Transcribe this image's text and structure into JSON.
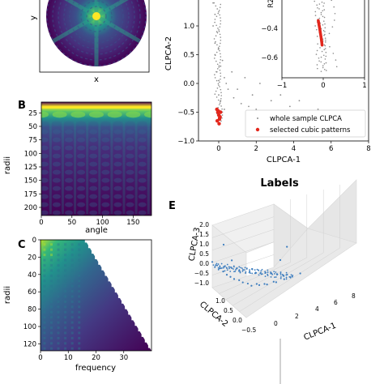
{
  "colors": {
    "viridis_dark": "#440154",
    "viridis_mid": "#21918c",
    "viridis_bright": "#fde725",
    "gray_points": "#8c8c8c",
    "red_points": "#e3271c",
    "blue_points": "#3c7dbf"
  },
  "panels": {
    "A": {
      "xlabel": "x",
      "ylabel": "y"
    },
    "B": {
      "letter": "B",
      "xlabel": "angle",
      "ylabel": "radii",
      "xticks": [
        "0",
        "50",
        "100",
        "150"
      ],
      "yticks": [
        "25",
        "50",
        "75",
        "100",
        "125",
        "150",
        "175",
        "200"
      ]
    },
    "C": {
      "letter": "C",
      "xlabel": "frequency",
      "ylabel": "radii",
      "xticks": [
        "0",
        "10",
        "20",
        "30"
      ],
      "yticks": [
        "0",
        "20",
        "40",
        "60",
        "80",
        "100",
        "120"
      ]
    },
    "D": {
      "xlabel": "CLPCA-1",
      "ylabel": "CLPCA-2",
      "xticks": [
        "0",
        "2",
        "4",
        "6",
        "8"
      ],
      "yticks": [
        "1.0",
        "0.5",
        "0.0",
        "−0.5",
        "−1.0"
      ],
      "legend": [
        "whole sample CLPCA",
        "selected cubic patterns"
      ],
      "inset_xticks": [
        "−1",
        "0",
        "1"
      ],
      "inset_yticks": [
        "−0.4",
        "−0.6"
      ],
      "inset_ylabel_fragment": "R2"
    },
    "E": {
      "letter": "E",
      "section_title": "Labels",
      "xlabel": "CLPCA-1",
      "ylabel": "CLPCA-2",
      "zlabel": "CLPCA-3",
      "xticks": [
        "0",
        "2",
        "4",
        "6",
        "8"
      ],
      "yticks": [
        "−0.5",
        "0.0",
        "0.5",
        "1.0"
      ],
      "zticks": [
        "2.0",
        "1.5",
        "1.0",
        "0.5",
        "0.0",
        "−0.5",
        "−1.0"
      ]
    }
  },
  "chart_data": [
    {
      "type": "heatmap",
      "panel": "A",
      "xlabel": "x",
      "ylabel": "y",
      "description_values": "circular diffraction pattern, bright center with six-fold symmetric spokes"
    },
    {
      "type": "heatmap",
      "panel": "B",
      "xlabel": "angle",
      "ylabel": "radii",
      "xlim": [
        0,
        180
      ],
      "ylim": [
        215,
        5
      ],
      "features": {
        "bright_band_radii": 15,
        "secondary_band_radii": 28,
        "periodicity_deg": 60
      }
    },
    {
      "type": "heatmap",
      "panel": "C",
      "xlabel": "frequency",
      "ylabel": "radii",
      "xlim": [
        0,
        40
      ],
      "ylim": [
        128,
        0
      ]
    },
    {
      "type": "scatter",
      "panel": "D",
      "xlabel": "CLPCA-1",
      "ylabel": "CLPCA-2",
      "xlim": [
        -1.5,
        8
      ],
      "ylim": [
        -1.0,
        1.5
      ],
      "series": [
        {
          "name": "whole sample CLPCA",
          "color": "#8c8c8c",
          "x": [
            -0.3,
            -0.2,
            -0.1,
            0.0,
            0.1,
            0.3,
            0.5,
            0.8,
            1.2,
            1.6,
            2.0,
            2.5,
            3.0,
            3.5,
            4.0,
            4.5,
            5.0,
            5.5,
            6.0,
            6.5,
            7.0,
            7.5,
            -0.2,
            -0.1,
            0.0,
            0.2,
            0.4,
            0.7,
            1.0,
            1.4,
            1.8,
            2.2,
            2.8,
            3.3,
            3.8,
            4.3,
            4.8,
            5.3,
            5.8,
            6.3,
            -0.3,
            -0.2,
            0.0,
            0.1,
            0.3
          ],
          "y": [
            1.4,
            1.2,
            0.9,
            0.6,
            0.3,
            0.1,
            -0.1,
            -0.25,
            -0.35,
            -0.4,
            -0.45,
            -0.5,
            -0.55,
            -0.6,
            -0.62,
            -0.65,
            -0.68,
            -0.7,
            -0.72,
            -0.74,
            -0.76,
            -0.78,
            0.5,
            0.2,
            -0.2,
            0.4,
            0.0,
            0.2,
            -0.1,
            0.1,
            -0.2,
            0.0,
            -0.3,
            -0.2,
            -0.4,
            -0.3,
            -0.5,
            -0.45,
            -0.6,
            -0.55,
            1.0,
            0.7,
            0.05,
            -0.3,
            -0.45
          ]
        },
        {
          "name": "selected cubic patterns",
          "color": "#e3271c",
          "x": [
            -0.1,
            -0.05,
            0.0,
            0.05,
            0.1,
            -0.08,
            0.02,
            0.07,
            -0.02,
            0.04
          ],
          "y": [
            -0.45,
            -0.5,
            -0.55,
            -0.6,
            -0.5,
            -0.65,
            -0.7,
            -0.58,
            -0.48,
            -0.62
          ]
        }
      ]
    },
    {
      "type": "scatter",
      "panel": "E",
      "xlabel": "CLPCA-1",
      "ylabel": "CLPCA-2",
      "zlabel": "CLPCA-3",
      "xlim": [
        0,
        8
      ],
      "ylim": [
        -0.5,
        1.0
      ],
      "zlim": [
        -1.0,
        2.0
      ],
      "series": [
        {
          "color": "#3c7dbf",
          "x": [
            0.0,
            0.2,
            0.4,
            0.6,
            0.9,
            1.2,
            1.6,
            2.0,
            2.5,
            3.0,
            3.5,
            4.0,
            0.1,
            0.3,
            0.5,
            0.8,
            1.1,
            1.5,
            1.9,
            2.4,
            0.0,
            0.1,
            0.3,
            2.8,
            3.2
          ],
          "y": [
            1.0,
            0.8,
            0.6,
            0.4,
            0.2,
            0.0,
            -0.1,
            -0.2,
            -0.3,
            -0.35,
            -0.4,
            -0.45,
            0.9,
            0.7,
            0.5,
            0.3,
            0.1,
            -0.05,
            -0.15,
            -0.25,
            0.5,
            0.2,
            0.0,
            -0.3,
            -0.35
          ],
          "z": [
            0.2,
            0.0,
            -0.2,
            -0.3,
            -0.4,
            -0.5,
            -0.55,
            -0.6,
            -0.62,
            -0.65,
            -0.7,
            -0.72,
            0.1,
            -0.1,
            -0.25,
            -0.35,
            -0.45,
            -0.5,
            -0.58,
            -0.6,
            1.5,
            1.0,
            0.6,
            0.3,
            0.8
          ]
        }
      ]
    }
  ]
}
